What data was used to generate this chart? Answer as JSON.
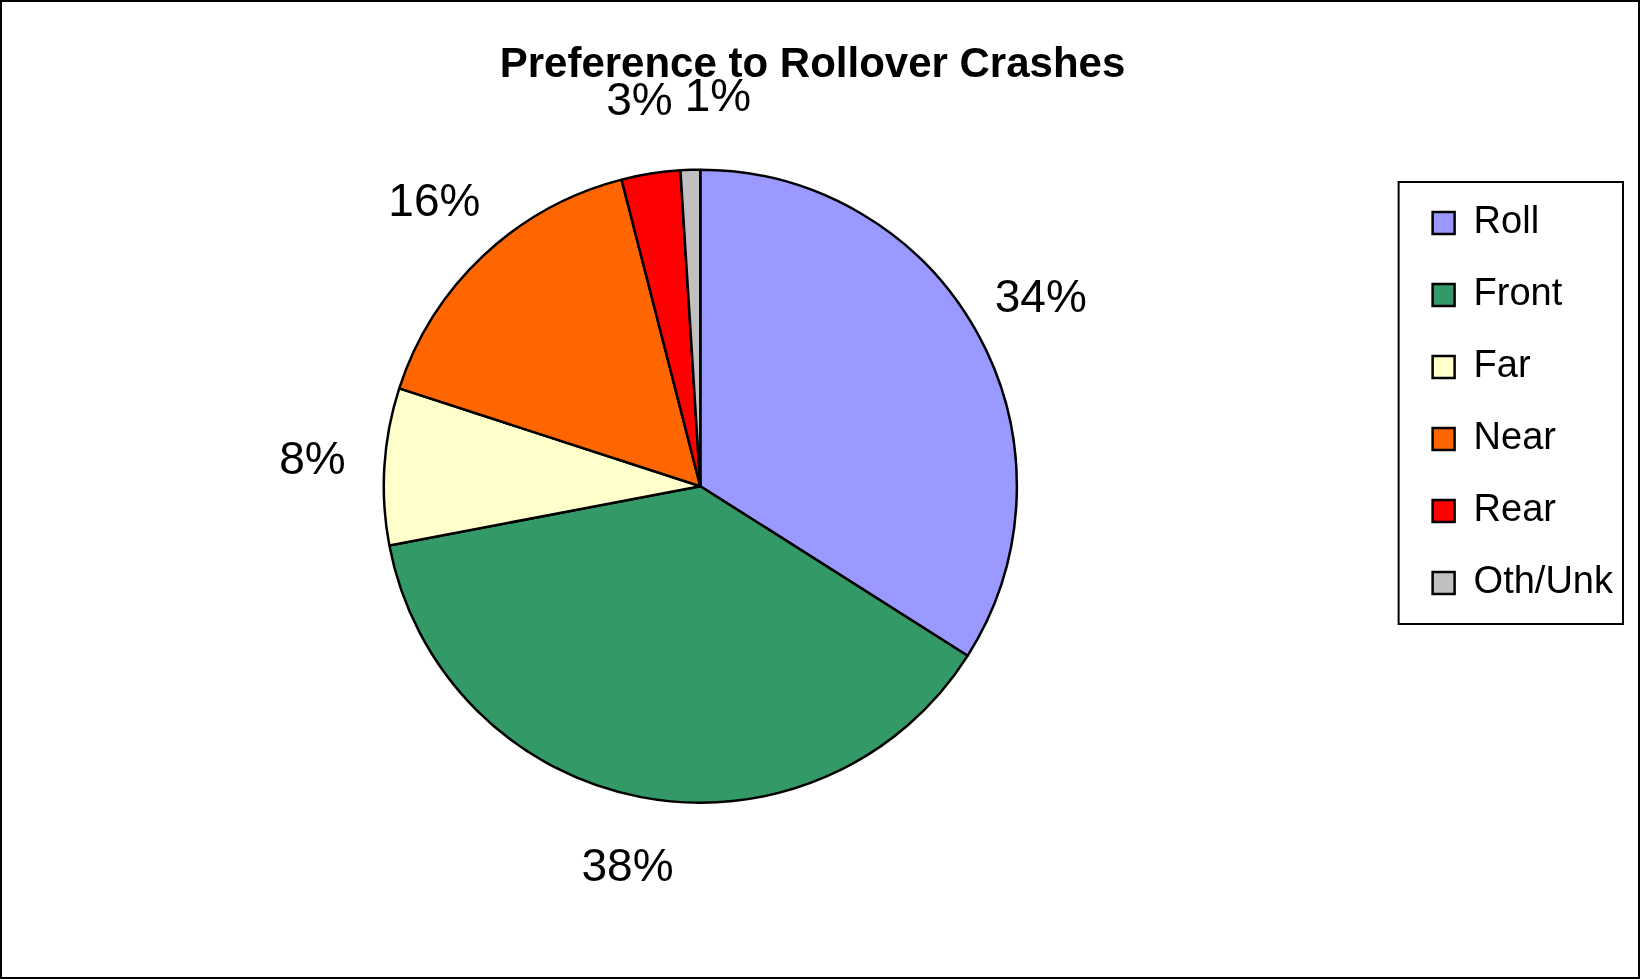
{
  "chart_data": {
    "type": "pie",
    "title": "Preference to Rollover Crashes",
    "categories": [
      "Roll",
      "Front",
      "Far",
      "Near",
      "Rear",
      "Oth/Unk"
    ],
    "values": [
      34,
      38,
      8,
      16,
      3,
      1
    ],
    "value_labels": [
      "34%",
      "38%",
      "8%",
      "16%",
      "3%",
      "1%"
    ],
    "colors": [
      "#9999ff",
      "#339966",
      "#ffffcc",
      "#ff6600",
      "#ff0000",
      "#c0c0c0"
    ],
    "legend": "right"
  }
}
